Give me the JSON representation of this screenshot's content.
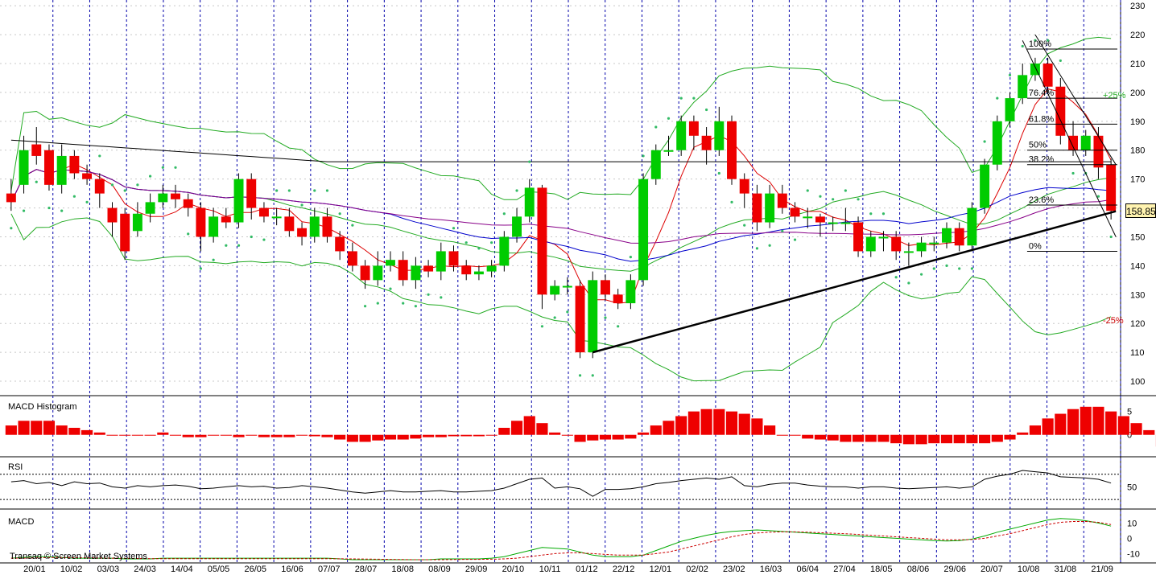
{
  "chart_data": [
    {
      "type": "candlestick",
      "panel": "price",
      "ylim": [
        95,
        232
      ],
      "y_ticks": [
        100,
        110,
        120,
        130,
        140,
        150,
        160,
        170,
        180,
        190,
        200,
        210,
        220,
        230
      ],
      "x_labels": [
        "20/01",
        "10/02",
        "03/03",
        "24/03",
        "14/04",
        "05/05",
        "26/05",
        "16/06",
        "07/07",
        "28/07",
        "18/08",
        "08/09",
        "29/09",
        "20/10",
        "10/11",
        "01/12",
        "22/12",
        "12/01",
        "02/02",
        "23/02",
        "16/03",
        "06/04",
        "27/04",
        "18/05",
        "08/06",
        "29/06",
        "20/07",
        "10/08",
        "31/08",
        "21/09"
      ],
      "last_price": "158.85",
      "fib_levels": [
        {
          "label": "100%",
          "value": 215
        },
        {
          "label": "76.4%",
          "value": 198
        },
        {
          "label": "61.8%",
          "value": 189
        },
        {
          "label": "50%",
          "value": 180
        },
        {
          "label": "38.2%",
          "value": 175
        },
        {
          "label": "23.6%",
          "value": 161
        },
        {
          "label": "0%",
          "value": 145
        }
      ],
      "annotations": {
        "plus25": "+25%",
        "minus25": "-25%"
      },
      "candles": [
        [
          165,
          162,
          170,
          159
        ],
        [
          168,
          180,
          185,
          165
        ],
        [
          182,
          178,
          188,
          175
        ],
        [
          180,
          168,
          182,
          166
        ],
        [
          168,
          178,
          182,
          165
        ],
        [
          178,
          172,
          180,
          170
        ],
        [
          172,
          170,
          175,
          168
        ],
        [
          170,
          165,
          172,
          160
        ],
        [
          160,
          155,
          162,
          150
        ],
        [
          158,
          145,
          160,
          142
        ],
        [
          152,
          158,
          162,
          150
        ],
        [
          158,
          162,
          165,
          155
        ],
        [
          162,
          165,
          168,
          160
        ],
        [
          165,
          163,
          168,
          160
        ],
        [
          163,
          160,
          165,
          157
        ],
        [
          160,
          150,
          162,
          145
        ],
        [
          150,
          157,
          160,
          148
        ],
        [
          157,
          155,
          160,
          153
        ],
        [
          155,
          170,
          172,
          153
        ],
        [
          170,
          160,
          172,
          156
        ],
        [
          160,
          157,
          162,
          155
        ],
        [
          157,
          157,
          160,
          154
        ],
        [
          157,
          152,
          160,
          150
        ],
        [
          153,
          150,
          155,
          147
        ],
        [
          150,
          157,
          160,
          148
        ],
        [
          157,
          150,
          160,
          148
        ],
        [
          150,
          145,
          152,
          142
        ],
        [
          145,
          140,
          148,
          138
        ],
        [
          140,
          135,
          142,
          132
        ],
        [
          135,
          140,
          145,
          133
        ],
        [
          140,
          142,
          145,
          138
        ],
        [
          142,
          135,
          145,
          133
        ],
        [
          135,
          140,
          143,
          132
        ],
        [
          140,
          138,
          142,
          136
        ],
        [
          138,
          145,
          148,
          135
        ],
        [
          145,
          140,
          147,
          138
        ],
        [
          140,
          137,
          142,
          135
        ],
        [
          137,
          138,
          140,
          135
        ],
        [
          138,
          140,
          142,
          136
        ],
        [
          140,
          150,
          152,
          138
        ],
        [
          150,
          157,
          160,
          148
        ],
        [
          157,
          167,
          170,
          155
        ],
        [
          167,
          130,
          168,
          125
        ],
        [
          130,
          133,
          135,
          128
        ],
        [
          133,
          133,
          136,
          130
        ],
        [
          133,
          110,
          135,
          108
        ],
        [
          110,
          135,
          138,
          108
        ],
        [
          135,
          130,
          137,
          128
        ],
        [
          130,
          127,
          132,
          125
        ],
        [
          127,
          135,
          137,
          125
        ],
        [
          135,
          170,
          172,
          133
        ],
        [
          170,
          180,
          182,
          168
        ],
        [
          180,
          180,
          185,
          178
        ],
        [
          180,
          190,
          192,
          178
        ],
        [
          190,
          185,
          192,
          180
        ],
        [
          185,
          180,
          188,
          175
        ],
        [
          180,
          190,
          195,
          178
        ],
        [
          190,
          170,
          192,
          168
        ],
        [
          170,
          165,
          172,
          160
        ],
        [
          165,
          155,
          168,
          152
        ],
        [
          155,
          165,
          168,
          153
        ],
        [
          165,
          160,
          168,
          158
        ],
        [
          160,
          157,
          162,
          155
        ],
        [
          157,
          157,
          160,
          153
        ],
        [
          157,
          155,
          158,
          150
        ],
        [
          155,
          155,
          157,
          152
        ],
        [
          155,
          155,
          160,
          152
        ],
        [
          155,
          145,
          157,
          143
        ],
        [
          145,
          150,
          152,
          143
        ],
        [
          150,
          150,
          152,
          145
        ],
        [
          150,
          145,
          152,
          142
        ],
        [
          145,
          145,
          148,
          140
        ],
        [
          145,
          148,
          150,
          143
        ],
        [
          148,
          148,
          150,
          145
        ],
        [
          148,
          153,
          155,
          146
        ],
        [
          153,
          147,
          155,
          145
        ],
        [
          147,
          160,
          162,
          145
        ],
        [
          160,
          175,
          177,
          158
        ],
        [
          175,
          190,
          192,
          173
        ],
        [
          190,
          198,
          200,
          188
        ],
        [
          198,
          206,
          210,
          196
        ],
        [
          206,
          210,
          212,
          204
        ],
        [
          210,
          202,
          212,
          200
        ],
        [
          202,
          185,
          205,
          182
        ],
        [
          185,
          180,
          190,
          178
        ],
        [
          180,
          185,
          187,
          178
        ],
        [
          185,
          174,
          188,
          170
        ],
        [
          175,
          159,
          177,
          156
        ]
      ]
    },
    {
      "type": "bar",
      "panel": "macd_histogram",
      "title": "MACD Histogram",
      "y_ticks": [
        0,
        5
      ],
      "ylim": [
        -4,
        7
      ],
      "values": [
        2,
        3,
        3,
        3,
        2,
        1.5,
        1,
        0.5,
        0,
        0,
        0,
        0,
        0.5,
        0,
        -0.5,
        -0.5,
        0,
        0,
        -0.5,
        0,
        -0.5,
        -0.5,
        -0.5,
        0,
        -0.3,
        -0.5,
        -1,
        -1.5,
        -1.5,
        -1.2,
        -1,
        -1,
        -0.8,
        -0.5,
        -0.5,
        -0.3,
        -0.3,
        -0.3,
        0,
        1.5,
        3,
        4,
        2.5,
        0.5,
        0,
        -1.5,
        -1.2,
        -1,
        -1,
        -0.8,
        0.5,
        2,
        3,
        4,
        5,
        5.5,
        5.5,
        5,
        4.5,
        3.5,
        2,
        0,
        0,
        -0.8,
        -1,
        -1.2,
        -1.5,
        -1.5,
        -1.5,
        -1.5,
        -1.8,
        -2,
        -2,
        -1.8,
        -1.8,
        -1.8,
        -1.8,
        -1.8,
        -1.5,
        -1,
        0.5,
        2,
        3.5,
        4.5,
        5.5,
        6,
        6,
        5,
        4,
        2.5,
        1,
        -2.5
      ]
    },
    {
      "type": "line",
      "panel": "rsi",
      "title": "RSI",
      "y_ticks": [
        50
      ],
      "ylim": [
        20,
        90
      ],
      "values": [
        58,
        60,
        55,
        57,
        52,
        58,
        55,
        56,
        50,
        48,
        52,
        50,
        52,
        53,
        51,
        47,
        48,
        50,
        52,
        50,
        51,
        48,
        49,
        52,
        50,
        48,
        45,
        42,
        40,
        42,
        44,
        42,
        42,
        43,
        44,
        42,
        42,
        43,
        44,
        48,
        55,
        62,
        64,
        48,
        50,
        47,
        35,
        46,
        46,
        47,
        50,
        55,
        57,
        60,
        62,
        64,
        62,
        66,
        52,
        50,
        54,
        56,
        56,
        53,
        51,
        50,
        50,
        48,
        50,
        50,
        48,
        47,
        48,
        49,
        50,
        48,
        50,
        62,
        67,
        70,
        76,
        74,
        72,
        66,
        65,
        64,
        62,
        56
      ]
    },
    {
      "type": "line",
      "panel": "macd",
      "title": "MACD",
      "y_ticks": [
        -10,
        0,
        10
      ],
      "ylim": [
        -14,
        16
      ],
      "series": [
        {
          "color": "#00aa00",
          "values": [
            -13,
            -12.5,
            -12,
            -12,
            -12.5,
            -13,
            -13,
            -13,
            -13,
            -13.5,
            -13.5,
            -13.5,
            -13,
            -13,
            -13,
            -13,
            -13,
            -13,
            -13,
            -13,
            -13,
            -13,
            -13,
            -13,
            -13,
            -13,
            -13.5,
            -14,
            -14,
            -14,
            -14,
            -14,
            -14,
            -14,
            -13.5,
            -13.5,
            -13.5,
            -13.5,
            -13,
            -12,
            -10,
            -8,
            -6,
            -6.5,
            -7,
            -9,
            -11,
            -12,
            -12,
            -12,
            -11,
            -8,
            -5,
            -2,
            0,
            2,
            3.5,
            4.5,
            5,
            5.5,
            5,
            4.5,
            4,
            3.5,
            3,
            2.5,
            2,
            1.5,
            1,
            0.5,
            0,
            -0.5,
            -1,
            -1.5,
            -1.8,
            -1.5,
            -0.5,
            1.5,
            4,
            6,
            8,
            10,
            12,
            13,
            12.5,
            11.5,
            10,
            8
          ]
        },
        {
          "color": "#cc0000",
          "values": [
            -13,
            -13,
            -12.8,
            -12.6,
            -12.6,
            -12.7,
            -12.8,
            -12.9,
            -13,
            -13.1,
            -13.2,
            -13.3,
            -13.3,
            -13.3,
            -13.3,
            -13.3,
            -13.3,
            -13.3,
            -13.3,
            -13.3,
            -13.3,
            -13.3,
            -13.3,
            -13.3,
            -13.3,
            -13.3,
            -13.4,
            -13.5,
            -13.6,
            -13.7,
            -13.8,
            -13.9,
            -14,
            -14,
            -14,
            -13.9,
            -13.8,
            -13.8,
            -13.7,
            -13.5,
            -13,
            -12,
            -11,
            -10,
            -9.5,
            -9.5,
            -10,
            -10.5,
            -11,
            -11,
            -11,
            -10,
            -9,
            -7,
            -5,
            -3,
            -1,
            1,
            2.5,
            3.5,
            4,
            4.2,
            4.2,
            4,
            3.7,
            3.3,
            3,
            2.5,
            2,
            1.5,
            1,
            0.5,
            0,
            -0.5,
            -1,
            -1,
            -0.8,
            0,
            1.5,
            3,
            5,
            7,
            9,
            10.5,
            11,
            11,
            10.5,
            9
          ]
        }
      ]
    }
  ],
  "watermark": "Transaq © Screen Market Systems",
  "colors": {
    "up": "#00cc00",
    "down": "#ee0000",
    "grid": "#0000aa"
  }
}
